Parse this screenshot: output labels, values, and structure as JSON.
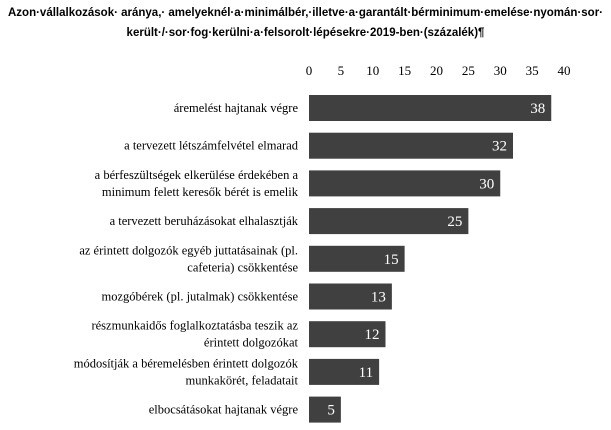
{
  "chart_data": {
    "type": "bar",
    "orientation": "horizontal",
    "title": "Azon·vállalkozások· aránya,· amelyeknél·a·minimálbér,·illetve·a·garantált·bérminimum·emelése·nyomán·sor· került·/·sor·fog·kerülni·a·felsorolt·lépésekre·2019-ben·(százalék)¶",
    "title_lines": [
      "Azon·vállalkozások· aránya,· amelyeknél·a·minimálbér,·illetve·a·garantált·bérminimum·emelése·nyomán·sor·",
      "került·/·sor·fog·kerülni·a·felsorolt·lépésekre·2019-ben·(százalék)¶"
    ],
    "categories": [
      [
        "áremelést hajtanak végre"
      ],
      [
        "a tervezett létszámfelvétel elmarad"
      ],
      [
        "a bérfeszültségek elkerülése érdekében a",
        "minimum felett keresők bérét is emelik"
      ],
      [
        "a tervezett beruházásokat elhalasztják"
      ],
      [
        "az érintett dolgozók egyéb juttatásainak (pl.",
        "cafeteria) csökkentése"
      ],
      [
        "mozgóbérek (pl. jutalmak) csökkentése"
      ],
      [
        "részmunkaidős foglalkoztatásba teszik az",
        "érintett dolgozókat"
      ],
      [
        "módosítják a béremelésben érintett dolgozók",
        "munkakörét, feladatait"
      ],
      [
        "elbocsátásokat hajtanak végre"
      ]
    ],
    "values": [
      38,
      32,
      30,
      25,
      15,
      13,
      12,
      11,
      5
    ],
    "xlim": [
      0,
      40
    ],
    "x_ticks": [
      0,
      5,
      10,
      15,
      20,
      25,
      30,
      35,
      40
    ],
    "x_axis_position": "top",
    "grid": false,
    "legend": "none",
    "colors": {
      "bar": "#404040",
      "bar_label": "#ffffff",
      "text": "#000000"
    }
  }
}
